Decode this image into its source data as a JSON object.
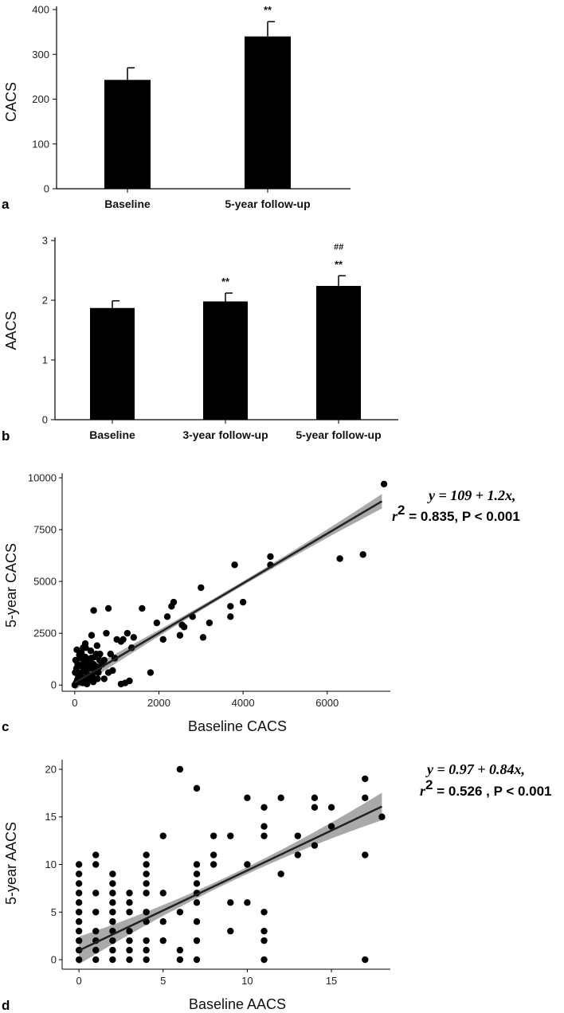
{
  "chart_data": [
    {
      "type": "bar",
      "panel_label": "a",
      "ylabel": "CACS",
      "ylim": [
        0,
        400
      ],
      "yticks": [
        0,
        100,
        200,
        300,
        400
      ],
      "categories": [
        "Baseline",
        "5-year follow-up"
      ],
      "values": [
        243,
        340
      ],
      "errors": [
        27,
        33
      ],
      "annotations": [
        "",
        "**"
      ],
      "annotations_extra": [
        "",
        ""
      ]
    },
    {
      "type": "bar",
      "panel_label": "b",
      "ylabel": "AACS",
      "ylim": [
        0,
        3
      ],
      "yticks": [
        0,
        1,
        2,
        3
      ],
      "categories": [
        "Baseline",
        "3-year follow-up",
        "5-year follow-up"
      ],
      "values": [
        1.87,
        1.98,
        2.24
      ],
      "errors": [
        0.12,
        0.14,
        0.17
      ],
      "annotations": [
        "",
        "**",
        "**"
      ],
      "annotations_extra": [
        "",
        "",
        "##"
      ]
    },
    {
      "type": "scatter",
      "panel_label": "c",
      "xlabel": "Baseline CACS",
      "ylabel": "5-year CACS",
      "xlim": [
        -300,
        7500
      ],
      "ylim": [
        -300,
        10000
      ],
      "xticks": [
        0,
        2000,
        4000,
        6000
      ],
      "yticks": [
        0,
        2500,
        5000,
        7500,
        10000
      ],
      "equation_line1": "y = 109 + 1.2x,",
      "equation_r2_prefix": "r",
      "equation_r2_sup": "2",
      "equation_line2_rest": " = 0.835, P < 0.001",
      "fit": {
        "intercept": 109,
        "slope": 1.2,
        "x_range": [
          0,
          7300
        ]
      },
      "points": [
        [
          0,
          0
        ],
        [
          30,
          100
        ],
        [
          60,
          250
        ],
        [
          90,
          400
        ],
        [
          120,
          150
        ],
        [
          150,
          600
        ],
        [
          180,
          900
        ],
        [
          210,
          300
        ],
        [
          240,
          700
        ],
        [
          270,
          1100
        ],
        [
          300,
          500
        ],
        [
          330,
          200
        ],
        [
          360,
          800
        ],
        [
          390,
          1300
        ],
        [
          420,
          400
        ],
        [
          450,
          1000
        ],
        [
          480,
          650
        ],
        [
          510,
          1500
        ],
        [
          540,
          300
        ],
        [
          570,
          850
        ],
        [
          20,
          1200
        ],
        [
          50,
          1700
        ],
        [
          80,
          550
        ],
        [
          110,
          1450
        ],
        [
          140,
          950
        ],
        [
          170,
          350
        ],
        [
          200,
          1250
        ],
        [
          230,
          750
        ],
        [
          260,
          1800
        ],
        [
          290,
          50
        ],
        [
          320,
          1150
        ],
        [
          350,
          450
        ],
        [
          380,
          1650
        ],
        [
          410,
          1050
        ],
        [
          440,
          150
        ],
        [
          470,
          1350
        ],
        [
          500,
          900
        ],
        [
          530,
          1900
        ],
        [
          560,
          600
        ],
        [
          590,
          1200
        ],
        [
          10,
          600
        ],
        [
          40,
          800
        ],
        [
          70,
          1000
        ],
        [
          100,
          200
        ],
        [
          130,
          1300
        ],
        [
          160,
          1550
        ],
        [
          190,
          100
        ],
        [
          220,
          1150
        ],
        [
          250,
          1350
        ],
        [
          280,
          950
        ],
        [
          600,
          1500
        ],
        [
          650,
          1000
        ],
        [
          700,
          1200
        ],
        [
          750,
          2500
        ],
        [
          800,
          3700
        ],
        [
          850,
          1500
        ],
        [
          900,
          700
        ],
        [
          950,
          1300
        ],
        [
          1000,
          2200
        ],
        [
          1100,
          2100
        ],
        [
          1150,
          2200
        ],
        [
          1200,
          100
        ],
        [
          1250,
          2500
        ],
        [
          1300,
          200
        ],
        [
          1350,
          1800
        ],
        [
          1400,
          2300
        ],
        [
          1600,
          3700
        ],
        [
          1800,
          600
        ],
        [
          1950,
          3000
        ],
        [
          2100,
          2200
        ],
        [
          2200,
          3300
        ],
        [
          2300,
          3800
        ],
        [
          2350,
          4000
        ],
        [
          2500,
          2400
        ],
        [
          2550,
          2900
        ],
        [
          2600,
          2800
        ],
        [
          2800,
          3300
        ],
        [
          3000,
          4700
        ],
        [
          3050,
          2300
        ],
        [
          3200,
          3000
        ],
        [
          3700,
          3800
        ],
        [
          3700,
          3300
        ],
        [
          3800,
          5800
        ],
        [
          4000,
          4000
        ],
        [
          4650,
          6200
        ],
        [
          4650,
          5800
        ],
        [
          6300,
          6100
        ],
        [
          6850,
          6300
        ],
        [
          7350,
          9700
        ],
        [
          450,
          3600
        ],
        [
          700,
          300
        ],
        [
          800,
          600
        ],
        [
          1100,
          50
        ],
        [
          200,
          1800
        ],
        [
          250,
          2000
        ],
        [
          400,
          2400
        ]
      ]
    },
    {
      "type": "scatter",
      "panel_label": "d",
      "xlabel": "Baseline AACS",
      "ylabel": "5-year AACS",
      "xlim": [
        -1,
        18.5
      ],
      "ylim": [
        -1,
        20.5
      ],
      "xticks": [
        0,
        5,
        10,
        15
      ],
      "yticks": [
        0,
        5,
        10,
        15,
        20
      ],
      "equation_line1": "y = 0.97 + 0.84x,",
      "equation_r2_prefix": "r",
      "equation_r2_sup": "2",
      "equation_line2_rest": " = 0.526 , P < 0.001",
      "fit": {
        "intercept": 0.97,
        "slope": 0.84,
        "x_range": [
          0,
          18
        ]
      },
      "points": [
        [
          0,
          0
        ],
        [
          0,
          1
        ],
        [
          0,
          2
        ],
        [
          0,
          3
        ],
        [
          0,
          4
        ],
        [
          0,
          5
        ],
        [
          0,
          6
        ],
        [
          0,
          7
        ],
        [
          0,
          8
        ],
        [
          0,
          9
        ],
        [
          0,
          10
        ],
        [
          1,
          0
        ],
        [
          1,
          1
        ],
        [
          1,
          2
        ],
        [
          1,
          3
        ],
        [
          1,
          5
        ],
        [
          1,
          7
        ],
        [
          1,
          10
        ],
        [
          1,
          11
        ],
        [
          2,
          0
        ],
        [
          2,
          1
        ],
        [
          2,
          2
        ],
        [
          2,
          3
        ],
        [
          2,
          4
        ],
        [
          2,
          5
        ],
        [
          2,
          6
        ],
        [
          2,
          7
        ],
        [
          2,
          8
        ],
        [
          2,
          9
        ],
        [
          3,
          0
        ],
        [
          3,
          1
        ],
        [
          3,
          2
        ],
        [
          3,
          3
        ],
        [
          3,
          5
        ],
        [
          3,
          6
        ],
        [
          3,
          7
        ],
        [
          4,
          0
        ],
        [
          4,
          1
        ],
        [
          4,
          2
        ],
        [
          4,
          4
        ],
        [
          4,
          5
        ],
        [
          4,
          7
        ],
        [
          4,
          8
        ],
        [
          4,
          9
        ],
        [
          4,
          10
        ],
        [
          4,
          11
        ],
        [
          5,
          2
        ],
        [
          5,
          4
        ],
        [
          5,
          7
        ],
        [
          5,
          13
        ],
        [
          6,
          0
        ],
        [
          6,
          1
        ],
        [
          6,
          5
        ],
        [
          6,
          20
        ],
        [
          7,
          0
        ],
        [
          7,
          2
        ],
        [
          7,
          4
        ],
        [
          7,
          6
        ],
        [
          7,
          7
        ],
        [
          7,
          8
        ],
        [
          7,
          9
        ],
        [
          7,
          10
        ],
        [
          7,
          18
        ],
        [
          8,
          10
        ],
        [
          8,
          11
        ],
        [
          8,
          13
        ],
        [
          9,
          3
        ],
        [
          9,
          6
        ],
        [
          9,
          13
        ],
        [
          10,
          6
        ],
        [
          10,
          10
        ],
        [
          10,
          17
        ],
        [
          11,
          0
        ],
        [
          11,
          2
        ],
        [
          11,
          3
        ],
        [
          11,
          5
        ],
        [
          11,
          13
        ],
        [
          11,
          14
        ],
        [
          11,
          16
        ],
        [
          12,
          9
        ],
        [
          12,
          17
        ],
        [
          13,
          11
        ],
        [
          13,
          13
        ],
        [
          14,
          12
        ],
        [
          14,
          16
        ],
        [
          14,
          17
        ],
        [
          15,
          14
        ],
        [
          15,
          16
        ],
        [
          17,
          0
        ],
        [
          17,
          11
        ],
        [
          17,
          17
        ],
        [
          17,
          19
        ],
        [
          18,
          15
        ]
      ]
    }
  ]
}
